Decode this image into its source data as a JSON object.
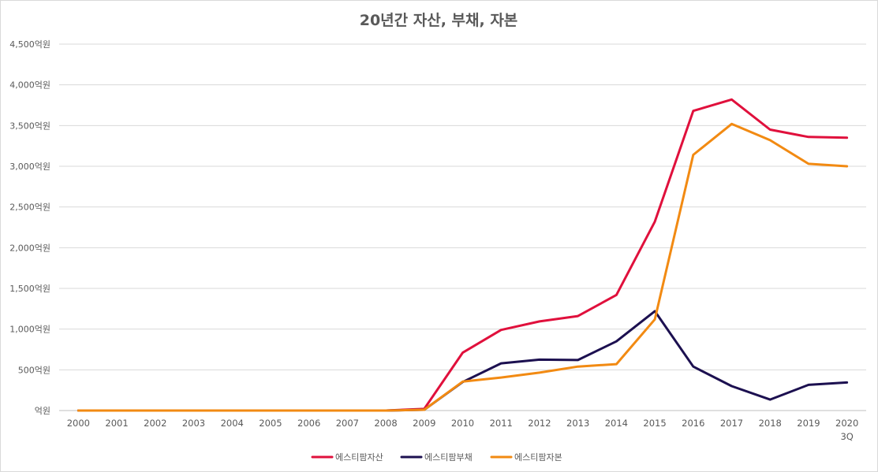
{
  "chart_data": {
    "type": "line",
    "title": "20년간 자산, 부채, 자본",
    "categories": [
      "2000",
      "2001",
      "2002",
      "2003",
      "2004",
      "2005",
      "2006",
      "2007",
      "2008",
      "2009",
      "2010",
      "2011",
      "2012",
      "2013",
      "2014",
      "2015",
      "2016",
      "2017",
      "2018",
      "2019",
      "2020\n3Q"
    ],
    "y_tick_labels": [
      "억원",
      "500억원",
      "1,000억원",
      "1,500억원",
      "2,000억원",
      "2,500억원",
      "3,000억원",
      "3,500억원",
      "4,000억원",
      "4,500억원"
    ],
    "ylim": [
      0,
      4500
    ],
    "grid": true,
    "legend_position": "bottom",
    "series": [
      {
        "name": "에스티팜자산",
        "color": "#e0103c",
        "values": [
          0,
          0,
          0,
          0,
          0,
          0,
          0,
          0,
          0,
          20,
          710,
          990,
          1095,
          1160,
          1420,
          2320,
          3680,
          3820,
          3450,
          3360,
          3350
        ]
      },
      {
        "name": "에스티팜부채",
        "color": "#1c1050",
        "values": [
          0,
          0,
          0,
          0,
          0,
          0,
          0,
          0,
          0,
          10,
          350,
          580,
          625,
          620,
          850,
          1220,
          540,
          300,
          135,
          315,
          345
        ]
      },
      {
        "name": "에스티팜자본",
        "color": "#f28a12",
        "values": [
          0,
          0,
          0,
          0,
          0,
          0,
          0,
          0,
          0,
          10,
          355,
          405,
          465,
          540,
          570,
          1120,
          3140,
          3520,
          3320,
          3030,
          3000
        ]
      }
    ]
  }
}
